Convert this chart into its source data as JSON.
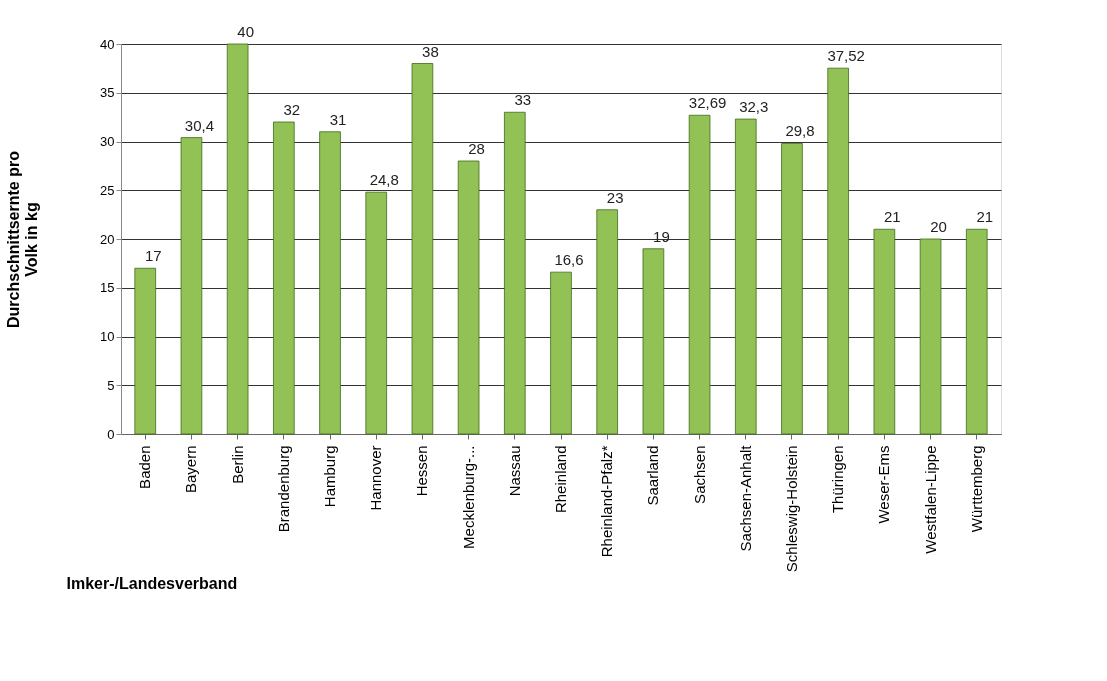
{
  "chart_data": {
    "type": "bar",
    "categories": [
      "Baden",
      "Bayern",
      "Berlin",
      "Brandenburg",
      "Hamburg",
      "Hannover",
      "Hessen",
      "Mecklenburg-...",
      "Nassau",
      "Rheinland",
      "Rheinland-Pfalz*",
      "Saarland",
      "Sachsen",
      "Sachsen-Anhalt",
      "Schleswig-Holstein",
      "Thüringen",
      "Weser-Ems",
      "Westfalen-Lippe",
      "Württemberg"
    ],
    "values": [
      17,
      30.4,
      40,
      32,
      31,
      24.8,
      38,
      28,
      33,
      16.6,
      23,
      19,
      32.69,
      32.3,
      29.8,
      37.52,
      21,
      20,
      21
    ],
    "value_labels": [
      "17",
      "30,4",
      "40",
      "32",
      "31",
      "24,8",
      "38",
      "28",
      "33",
      "16,6",
      "23",
      "19",
      "32,69",
      "32,3",
      "29,8",
      "37,52",
      "21",
      "20",
      "21"
    ],
    "color": "#92c256",
    "ylabel": "Durchschnittsernte pro\nVolk in kg",
    "xlabel": "Imker-/Landesverband",
    "ylim": [
      0,
      40
    ],
    "yticks": [
      0,
      5,
      10,
      15,
      20,
      25,
      30,
      35,
      40
    ],
    "grid": "y"
  }
}
